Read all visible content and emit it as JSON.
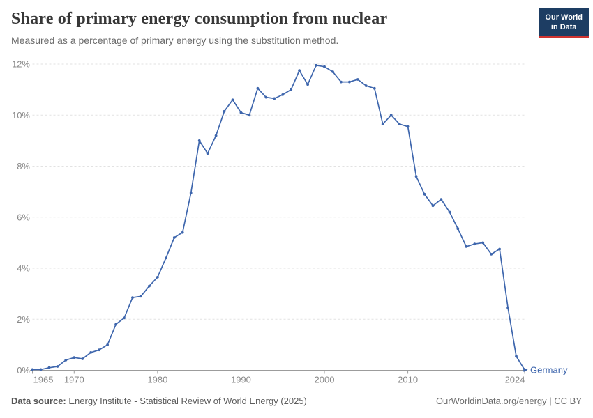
{
  "header": {
    "title": "Share of primary energy consumption from nuclear",
    "subtitle": "Measured as a percentage of primary energy using the substitution method."
  },
  "logo": {
    "line1": "Our World",
    "line2": "in Data"
  },
  "footer": {
    "source_label": "Data source:",
    "source_text": " Energy Institute - Statistical Review of World Energy (2025)",
    "right_text": "OurWorldinData.org/energy | CC BY"
  },
  "colors": {
    "line": "#3e66ad",
    "grid": "#e2e2e2",
    "axis": "#9c9c9c",
    "tick_label": "#888888",
    "entity_label": "#3e66ad",
    "logo_bg": "#1d3d63",
    "logo_stripe": "#cf3330"
  },
  "chart_data": {
    "type": "line",
    "title": "Share of primary energy consumption from nuclear",
    "subtitle": "Measured as a percentage of primary energy using the substitution method.",
    "unit": "%",
    "grid": "horizontal-dashed",
    "legend_position": "end-of-line",
    "xlim": [
      1965,
      2024
    ],
    "ylim": [
      0,
      12
    ],
    "x_ticks": [
      1965,
      1970,
      1980,
      1990,
      2000,
      2010,
      2024
    ],
    "y_ticks": [
      0,
      2,
      4,
      6,
      8,
      10,
      12
    ],
    "x": [
      1965,
      1966,
      1967,
      1968,
      1969,
      1970,
      1971,
      1972,
      1973,
      1974,
      1975,
      1976,
      1977,
      1978,
      1979,
      1980,
      1981,
      1982,
      1983,
      1984,
      1985,
      1986,
      1987,
      1988,
      1989,
      1990,
      1991,
      1992,
      1993,
      1994,
      1995,
      1996,
      1997,
      1998,
      1999,
      2000,
      2001,
      2002,
      2003,
      2004,
      2005,
      2006,
      2007,
      2008,
      2009,
      2010,
      2011,
      2012,
      2013,
      2014,
      2015,
      2016,
      2017,
      2018,
      2019,
      2020,
      2021,
      2022,
      2023,
      2024
    ],
    "series": [
      {
        "name": "Germany",
        "values": [
          0.03,
          0.03,
          0.1,
          0.15,
          0.4,
          0.5,
          0.45,
          0.7,
          0.8,
          1.0,
          1.8,
          2.05,
          2.85,
          2.9,
          3.3,
          3.65,
          4.4,
          5.2,
          5.4,
          6.95,
          9.0,
          8.5,
          9.2,
          10.15,
          10.6,
          10.1,
          10.0,
          11.05,
          10.7,
          10.65,
          10.8,
          11.0,
          11.75,
          11.2,
          11.95,
          11.9,
          11.7,
          11.3,
          11.3,
          11.4,
          11.15,
          11.05,
          9.65,
          10.0,
          9.65,
          9.55,
          7.6,
          6.9,
          6.45,
          6.7,
          6.2,
          5.55,
          4.85,
          4.95,
          5.0,
          4.55,
          4.75,
          2.45,
          0.55,
          0.02
        ]
      }
    ]
  }
}
